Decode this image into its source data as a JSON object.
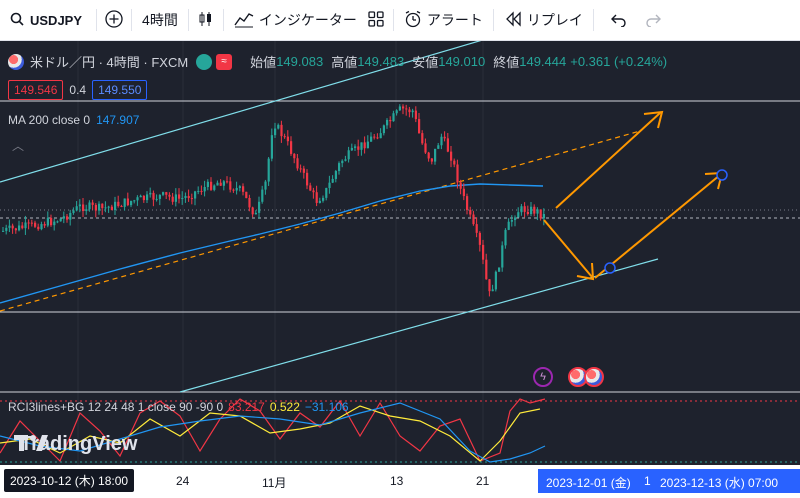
{
  "toolbar": {
    "symbol": "USDJPY",
    "interval": "4時間",
    "indicators_label": "インジケーター",
    "alert_label": "アラート",
    "replay_label": "リプレイ"
  },
  "legend": {
    "title": "米ドル／円 · 4時間 · FXCM",
    "open_label": "始値",
    "open": "149.083",
    "high_label": "高値",
    "high": "149.483",
    "low_label": "安値",
    "low": "149.010",
    "close_label": "終値",
    "close": "149.444",
    "change": "+0.361 (+0.24%)"
  },
  "quote": {
    "sell": "149.546",
    "spread": "0.4",
    "buy": "149.550"
  },
  "ma": {
    "label": "MA 200 close 0",
    "value": "147.907"
  },
  "rci": {
    "label": "RCI3lines+BG 12 24 48 1 close 90 -90 0",
    "short": "83.217",
    "mid": "0.522",
    "long": "−31.106"
  },
  "brand": "TradingView",
  "time_axis": {
    "cursor_left": "2023-10-12 (木)   18:00",
    "ticks": [
      "24",
      "11月",
      "13",
      "21"
    ],
    "range_start": "2023-12-01 (金)",
    "range_mid": "1",
    "range_end": "2023-12-13 (水)   07:00"
  },
  "colors": {
    "up": "#26a69a",
    "down": "#f23645",
    "ma": "#2196f3",
    "channel": "#80deea",
    "scenario": "#ff9800"
  },
  "icons": [
    "add-symbol-icon",
    "candles-icon",
    "indicators-icon",
    "templates-icon",
    "alert-icon",
    "replay-icon",
    "undo-icon",
    "redo-icon"
  ]
}
